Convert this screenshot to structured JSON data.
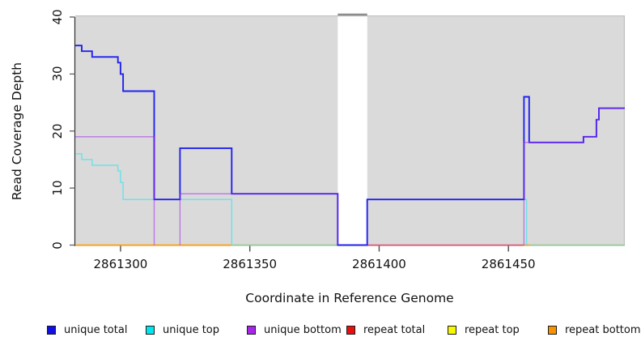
{
  "chart_data": {
    "type": "line",
    "subtype": "step",
    "title": "",
    "xlabel": "Coordinate in Reference Genome",
    "ylabel": "Read Coverage Depth",
    "x_axis": {
      "range": [
        2861282.5,
        2861495
      ],
      "ticks": [
        2861300,
        2861350,
        2861400,
        2861450
      ],
      "tick_labels": [
        "2861300",
        "2861350",
        "2861400",
        "2861450"
      ]
    },
    "y_axis": {
      "range": [
        0,
        40
      ],
      "ticks": [
        0,
        10,
        20,
        30,
        40
      ],
      "tick_labels": [
        "0",
        "10",
        "20",
        "30",
        "40"
      ]
    },
    "plot_background": "#dadada",
    "grid": "off",
    "legend_position": "bottom",
    "gap_region": {
      "from": 2861384,
      "to": 2861395.4,
      "fill": "#ffffff",
      "top_cap_color": "#8d8d8d"
    },
    "series": [
      {
        "name": "unique top",
        "z": 1,
        "color": "#6FE2E8",
        "width": 1.5,
        "segments": [
          [
            [
              2861282.5,
              16
            ],
            [
              2861285,
              15
            ],
            [
              2861289,
              14
            ],
            [
              2861299,
              13
            ],
            [
              2861300,
              11
            ],
            [
              2861301,
              8
            ],
            [
              2861343,
              0
            ]
          ],
          [
            [
              2861395.4,
              8
            ],
            [
              2861457,
              8
            ],
            [
              2861457,
              0
            ]
          ]
        ]
      },
      {
        "name": "unique total",
        "z": 2,
        "color": "#2222EE",
        "width": 1.9,
        "segments": [
          [
            [
              2861282.5,
              35
            ],
            [
              2861285,
              34
            ],
            [
              2861289,
              33
            ],
            [
              2861299,
              32
            ],
            [
              2861300,
              30
            ],
            [
              2861301,
              27
            ],
            [
              2861313,
              8
            ],
            [
              2861323,
              17
            ],
            [
              2861343,
              9
            ],
            [
              2861384,
              0
            ],
            [
              2861395.4,
              8
            ],
            [
              2861456,
              26
            ],
            [
              2861458,
              18
            ],
            [
              2861479,
              19
            ],
            [
              2861484,
              22
            ],
            [
              2861485,
              24
            ],
            [
              2861495,
              24
            ]
          ]
        ]
      },
      {
        "name": "unique bottom",
        "z": 3,
        "color": "rgba(160,32,240,0.55)",
        "width": 1.3,
        "segments": [
          [
            [
              2861282.5,
              19
            ],
            [
              2861313,
              19
            ],
            [
              2861313,
              0
            ]
          ],
          [
            [
              2861323,
              0
            ],
            [
              2861323,
              9
            ],
            [
              2861384,
              9
            ],
            [
              2861384,
              0
            ]
          ],
          [
            [
              2861456,
              0
            ],
            [
              2861456,
              18
            ],
            [
              2861479,
              18
            ],
            [
              2861479,
              19
            ],
            [
              2861484,
              19
            ],
            [
              2861484,
              22
            ],
            [
              2861485,
              22
            ],
            [
              2861485,
              24
            ],
            [
              2861495,
              24
            ]
          ]
        ]
      },
      {
        "name": "repeat total",
        "z": 0,
        "color": "#EE0000",
        "width": 1.3,
        "constant_value": 0,
        "segments": []
      },
      {
        "name": "repeat top",
        "z": 0,
        "color": "#F2F200",
        "width": 1.3,
        "constant_value": 0,
        "segments": []
      },
      {
        "name": "repeat bottom",
        "z": 0,
        "color": "#F79300",
        "width": 1.3,
        "constant_value": 0,
        "segments": []
      }
    ],
    "baseline_visible": [
      {
        "series": "repeat-bottom",
        "color": "#FF9800",
        "from": 2861282.5,
        "to": 2861343
      },
      {
        "series": "blend-top-zero",
        "color": "#8FC98F",
        "from": 2861343,
        "to": 2861384
      },
      {
        "series": "repeat-total",
        "color": "#D8536F",
        "from": 2861395.4,
        "to": 2861456
      },
      {
        "series": "repeat-bottom",
        "color": "#FF9800",
        "from": 2861456,
        "to": 2861458
      },
      {
        "series": "blend-top-zero",
        "color": "#8FC98F",
        "from": 2861458,
        "to": 2861495
      }
    ],
    "legend": [
      {
        "label": "unique total",
        "color": "#0F0FE6"
      },
      {
        "label": "unique top",
        "color": "#00E6EE"
      },
      {
        "label": "unique bottom",
        "color": "#A825EB"
      },
      {
        "label": "repeat total",
        "color": "#EA0F0F"
      },
      {
        "label": "repeat top",
        "color": "#F7F700"
      },
      {
        "label": "repeat bottom",
        "color": "#F79300"
      }
    ]
  }
}
